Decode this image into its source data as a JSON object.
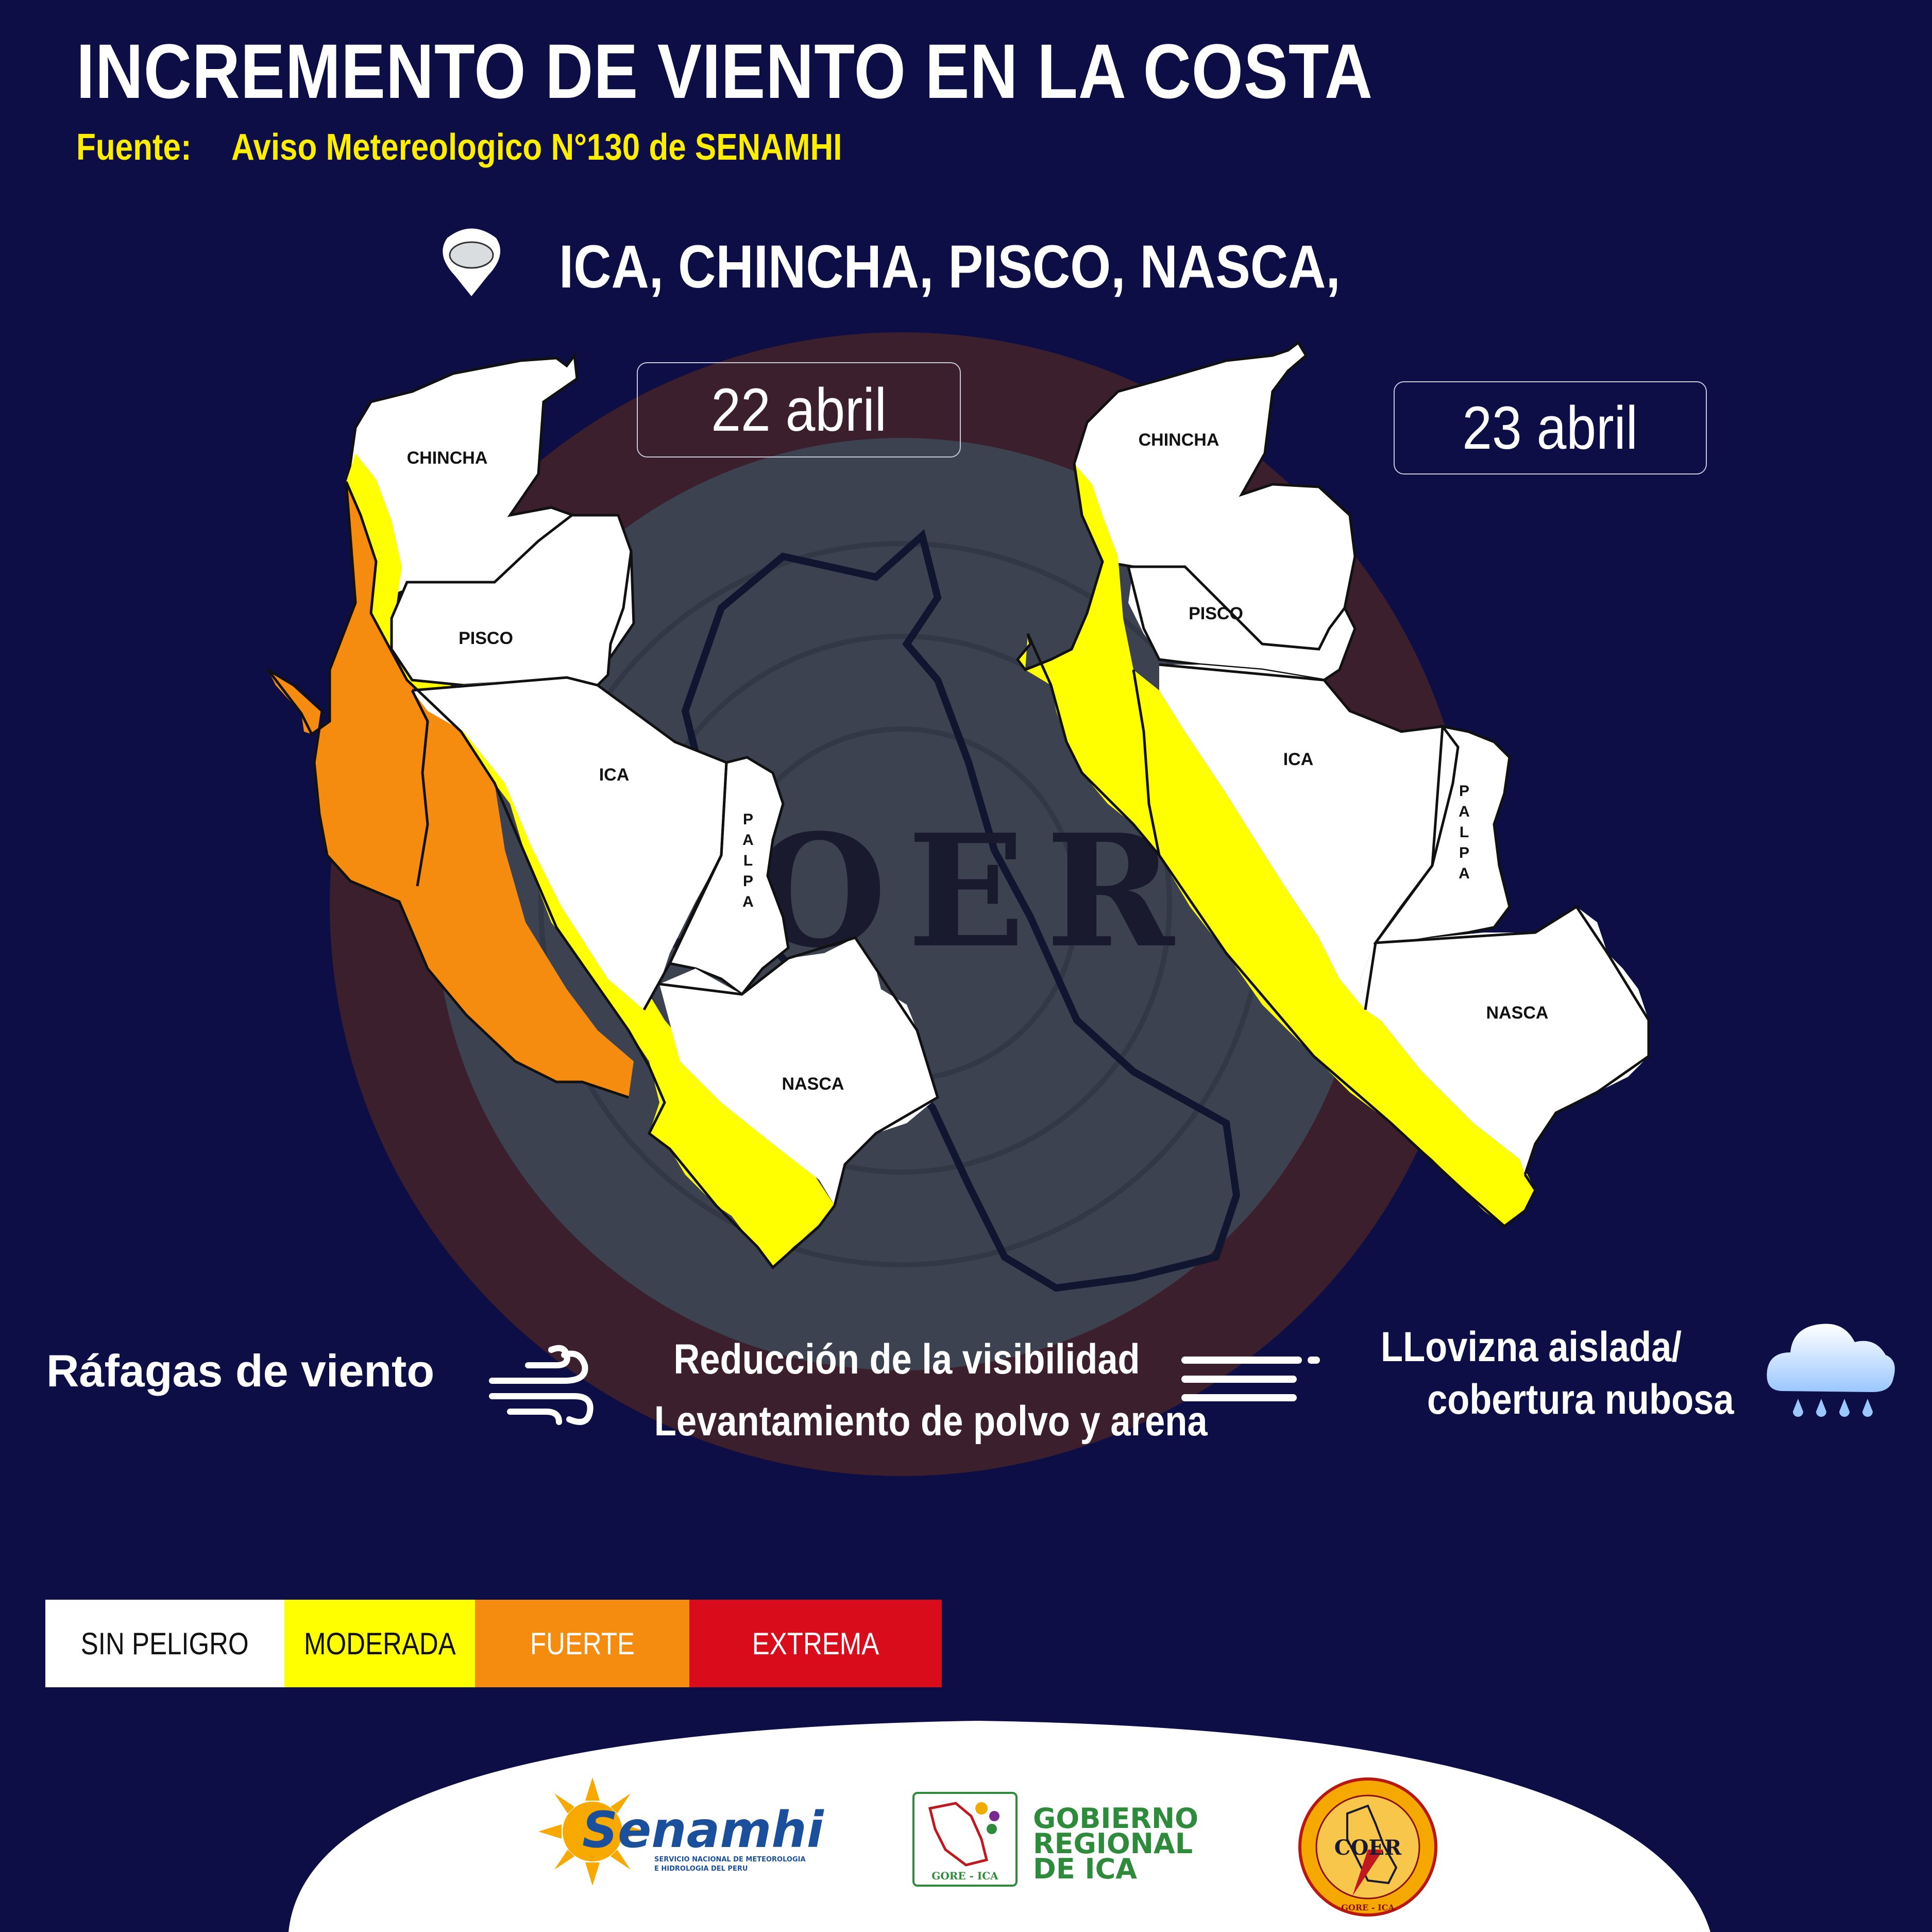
{
  "header": {
    "title": "INCREMENTO DE VIENTO EN LA COSTA",
    "source_label": "Fuente:",
    "source_text": "Aviso Metereologico N°130 de SENAMHI"
  },
  "location": {
    "icon": "map-pin-icon",
    "places": "ICA, CHINCHA, PISCO, NASCA,"
  },
  "dates": {
    "day1": "22 abril",
    "day2": "23 abril"
  },
  "map_labels": {
    "chincha": "CHINCHA",
    "pisco": "PISCO",
    "ica": "ICA",
    "palpa_letters": [
      "P",
      "A",
      "L",
      "P",
      "A"
    ],
    "nasca": "NASCA"
  },
  "background_logo_text": "COER",
  "hazards": {
    "wind": "Ráfagas de viento",
    "visibility_line1": "Reducción de la visibilidad",
    "visibility_line2": "Levantamiento de polvo y arena",
    "drizzle_line1": "LLovizna aislada/",
    "drizzle_line2": "cobertura nubosa",
    "icons": [
      "wind-icon",
      "fog-lines-icon",
      "rain-cloud-icon"
    ]
  },
  "legend": [
    {
      "label": "SIN PELIGRO",
      "color": "#ffffff",
      "text_color": "#111111"
    },
    {
      "label": "MODERADA",
      "color": "#ffff00",
      "text_color": "#111111"
    },
    {
      "label": "FUERTE",
      "color": "#f58b0f",
      "text_color": "#ffffff"
    },
    {
      "label": "EXTREMA",
      "color": "#d90c1c",
      "text_color": "#ffffff"
    }
  ],
  "footer": {
    "senamhi_name": "Senamhi",
    "senamhi_sub1": "SERVICIO NACIONAL DE METEOROLOGIA",
    "senamhi_sub2": "E HIDROLOGIA DEL PERU",
    "gore_line1": "GOBIERNO",
    "gore_line2": "REGIONAL",
    "gore_line3": "DE ICA",
    "gore_small": "GORE - ICA",
    "coer_text": "COER",
    "coer_small": "GORE - ICA"
  },
  "colors": {
    "background": "#0c0e45",
    "title": "#ffffff",
    "source": "#ffee00",
    "moderada": "#ffff00",
    "fuerte": "#f58b0f"
  }
}
